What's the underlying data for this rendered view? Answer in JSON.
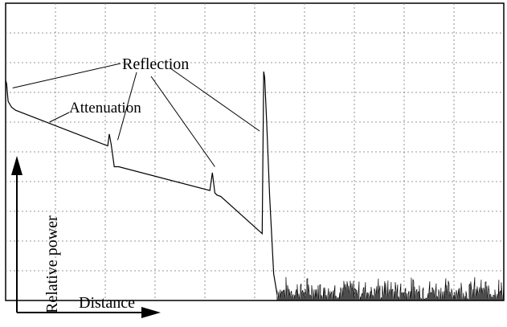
{
  "chart_data": {
    "type": "line",
    "title": "",
    "xlabel": "Distance",
    "ylabel": "Relative power",
    "grid": true,
    "xlim": [
      0,
      10
    ],
    "ylim": [
      0,
      10
    ],
    "annotations": [
      {
        "text": "Reflection",
        "targets": [
          "launch-spike",
          "spike-1",
          "spike-2",
          "end-spike"
        ]
      },
      {
        "text": "Attenuation",
        "targets": [
          "fiber-backscatter-slope"
        ]
      }
    ],
    "series": [
      {
        "name": "",
        "x": [
          0.0,
          0.02,
          0.05,
          0.12,
          0.2,
          2.05,
          2.08,
          2.12,
          2.18,
          2.27,
          4.1,
          4.15,
          4.2,
          4.24,
          4.32,
          5.15,
          5.18,
          5.2,
          5.24,
          5.3,
          5.38,
          5.45
        ],
        "y": [
          7.4,
          7.3,
          6.7,
          6.5,
          6.4,
          5.2,
          5.6,
          5.25,
          4.5,
          4.5,
          3.7,
          4.3,
          3.62,
          3.55,
          3.5,
          2.25,
          7.7,
          7.5,
          6.0,
          3.5,
          0.9,
          0.2
        ]
      }
    ],
    "noise_floor": {
      "x_start": 5.45,
      "x_end": 10.0,
      "level_min": 0.0,
      "level_max": 0.85
    }
  }
}
